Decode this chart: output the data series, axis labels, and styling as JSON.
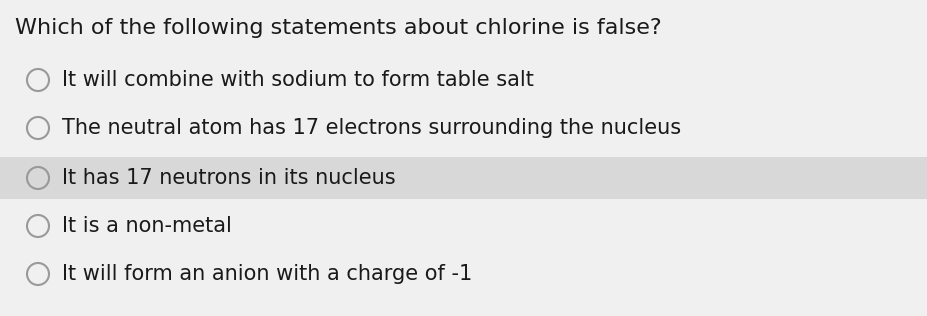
{
  "title": "Which of the following statements about chlorine is false?",
  "options": [
    "It will combine with sodium to form table salt",
    "The neutral atom has 17 electrons surrounding the nucleus",
    "It has 17 neutrons in its nucleus",
    "It is a non-metal",
    "It will form an anion with a charge of -1"
  ],
  "highlighted_option_index": 2,
  "background_color": "#f0f0f0",
  "highlight_color": "#d8d8d8",
  "title_color": "#1a1a1a",
  "option_color": "#1a1a1a",
  "circle_edge_color": "#999999",
  "circle_fill_color": "#f0f0f0",
  "circle_fill_highlight": "#d8d8d8",
  "title_fontsize": 16,
  "option_fontsize": 15
}
